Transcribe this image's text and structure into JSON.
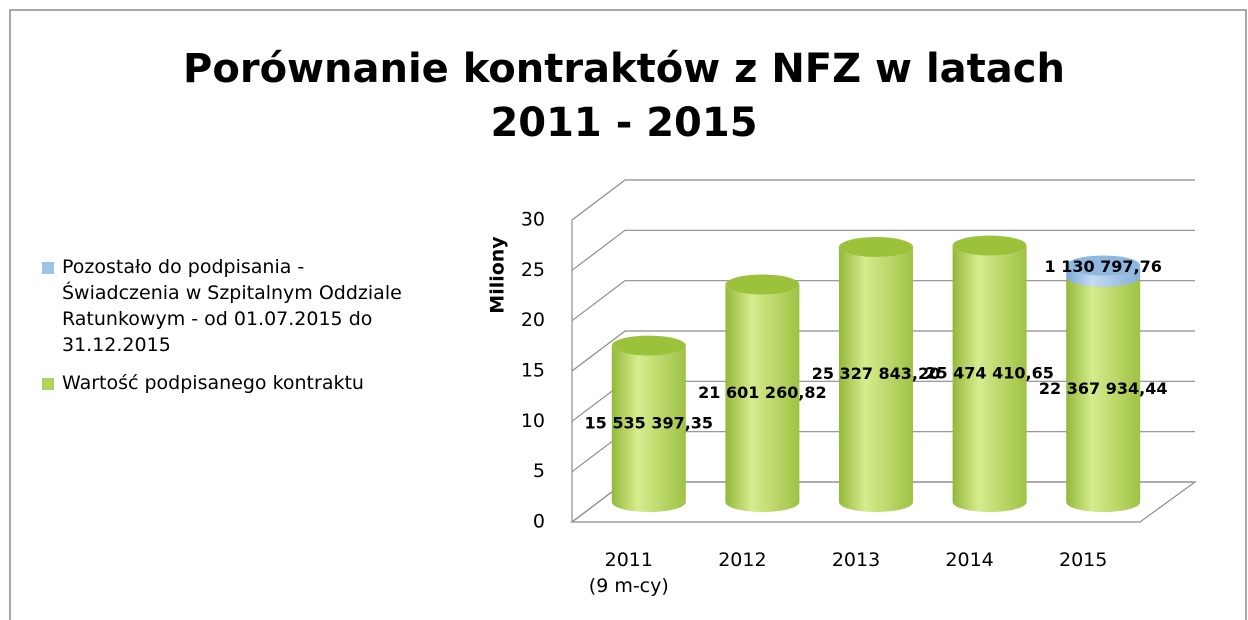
{
  "chart_data": {
    "type": "cylinder-stacked-bar",
    "title": "Porównanie kontraktów z NFZ w latach\n2011 - 2015",
    "y_label": "Miliony",
    "categories": [
      "2011\n(9 m-cy)",
      "2012",
      "2013",
      "2014",
      "2015"
    ],
    "series": [
      {
        "name": "Wartość podpisanego kontraktu",
        "color": "#b3d25f",
        "values": [
          15.53539735,
          21.60126082,
          25.3278432,
          25.47441065,
          22.36793444
        ],
        "value_labels": [
          "15 535 397,35",
          "21 601 260,82",
          "25 327 843,20",
          "25 474 410,65",
          "22 367 934,44"
        ]
      },
      {
        "name": "Pozostało do podpisania - Świadczenia w Szpitalnym Oddziale Ratunkowym - od 01.07.2015 do 31.12.2015",
        "color": "#9dc3e6",
        "values": [
          null,
          null,
          null,
          null,
          1.13079776
        ],
        "value_labels": [
          null,
          null,
          null,
          null,
          "1 130 797,76"
        ]
      }
    ],
    "ylim": [
      0,
      30
    ],
    "yticks": [
      0,
      5,
      10,
      15,
      20,
      25,
      30
    ],
    "grid": true,
    "legend": "left"
  }
}
